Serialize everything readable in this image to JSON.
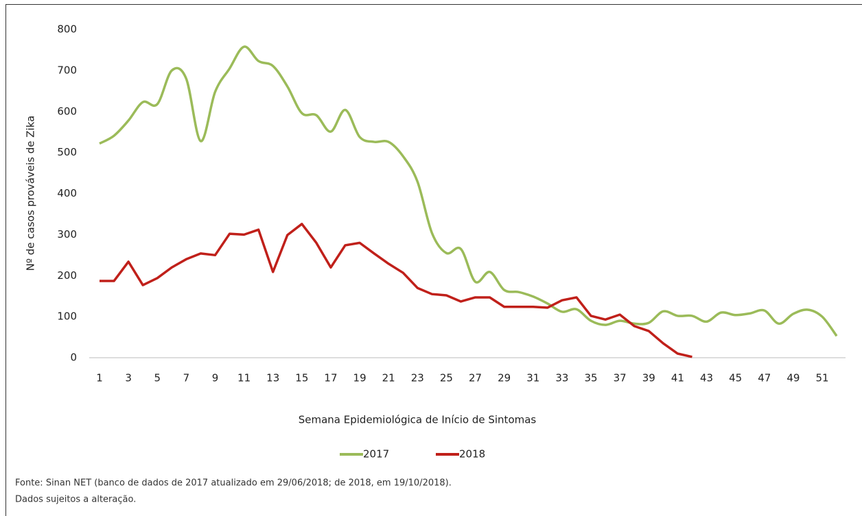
{
  "chart_data": {
    "type": "line",
    "y_label": "Nº de casos prováveis de Zika",
    "x_label": "Semana Epidemiológica de Início de Sintomas",
    "categories": [
      "1",
      null,
      "3",
      null,
      "5",
      null,
      "7",
      null,
      "9",
      null,
      "11",
      null,
      "13",
      null,
      "15",
      null,
      "17",
      null,
      "19",
      null,
      "21",
      null,
      "23",
      null,
      "25",
      null,
      "27",
      null,
      "29",
      null,
      "31",
      null,
      "33",
      null,
      "35",
      null,
      "37",
      null,
      "39",
      null,
      "41",
      null,
      "43",
      null,
      "45",
      null,
      "47",
      null,
      "49",
      null,
      "51",
      null
    ],
    "ylim": [
      0,
      800
    ],
    "yticks": [
      0,
      100,
      200,
      300,
      400,
      500,
      600,
      700,
      800
    ],
    "legend": "bottom",
    "series": [
      {
        "name": "2017",
        "color": "#9bbb59",
        "smooth": true,
        "values": [
          522,
          541,
          578,
          623,
          618,
          700,
          680,
          528,
          648,
          705,
          758,
          723,
          711,
          661,
          596,
          591,
          551,
          604,
          538,
          526,
          526,
          491,
          429,
          304,
          255,
          265,
          185,
          209,
          165,
          160,
          149,
          132,
          112,
          118,
          90,
          80,
          90,
          83,
          85,
          113,
          102,
          102,
          88,
          110,
          104,
          108,
          115,
          83,
          107,
          117,
          100,
          53
        ]
      },
      {
        "name": "2018",
        "color": "#c0201a",
        "smooth": false,
        "values": [
          187,
          187,
          234,
          177,
          194,
          220,
          240,
          254,
          250,
          302,
          300,
          312,
          209,
          299,
          326,
          280,
          220,
          274,
          280,
          254,
          229,
          207,
          170,
          155,
          152,
          137,
          147,
          147,
          124,
          124,
          124,
          122,
          140,
          147,
          102,
          93,
          105,
          77,
          65,
          35,
          10,
          2,
          null,
          null,
          null,
          null,
          null,
          null,
          null,
          null,
          null,
          null
        ]
      }
    ]
  },
  "notes": [
    "Fonte: Sinan NET (banco de dados de 2017 atualizado em 29/06/2018; de 2018, em 19/10/2018).",
    "Dados sujeitos a alteração."
  ]
}
